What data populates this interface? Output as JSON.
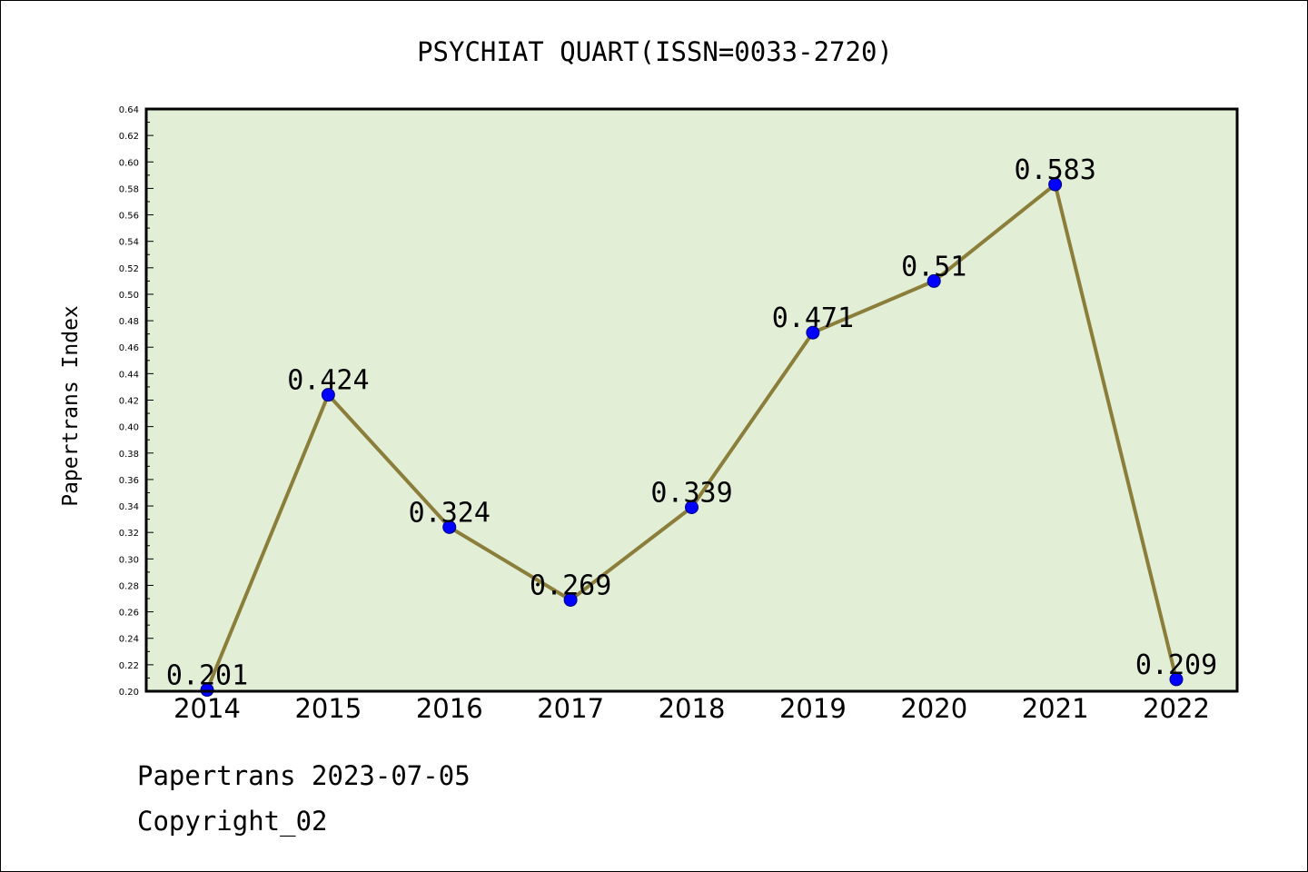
{
  "chart_data": {
    "type": "line",
    "title": "PSYCHIAT QUART(ISSN=0033-2720)",
    "xlabel": "",
    "ylabel": "Papertrans Index",
    "categories": [
      "2014",
      "2015",
      "2016",
      "2017",
      "2018",
      "2019",
      "2020",
      "2021",
      "2022"
    ],
    "series": [
      {
        "values": [
          0.201,
          0.424,
          0.324,
          0.269,
          0.339,
          0.471,
          0.51,
          0.583,
          0.209
        ],
        "data_labels": [
          "0.201",
          "0.424",
          "0.324",
          "0.269",
          "0.339",
          "0.471",
          "0.51",
          "0.583",
          "0.209"
        ]
      }
    ],
    "ylim": [
      0.2,
      0.64
    ],
    "yticks": [
      "0.20",
      "0.22",
      "0.24",
      "0.26",
      "0.28",
      "0.30",
      "0.32",
      "0.34",
      "0.36",
      "0.38",
      "0.40",
      "0.42",
      "0.44",
      "0.46",
      "0.48",
      "0.50",
      "0.52",
      "0.54",
      "0.56",
      "0.58",
      "0.60",
      "0.62",
      "0.64"
    ],
    "grid": false,
    "legend": "none",
    "colors": {
      "plot_background": "#e2efd6",
      "line": "#8b7d3a",
      "marker_fill": "#0000ff",
      "marker_edge": "#000080",
      "axis": "#000000"
    }
  },
  "footer": {
    "date_text": "Papertrans 2023-07-05",
    "copyright_text": "Copyright_02"
  }
}
